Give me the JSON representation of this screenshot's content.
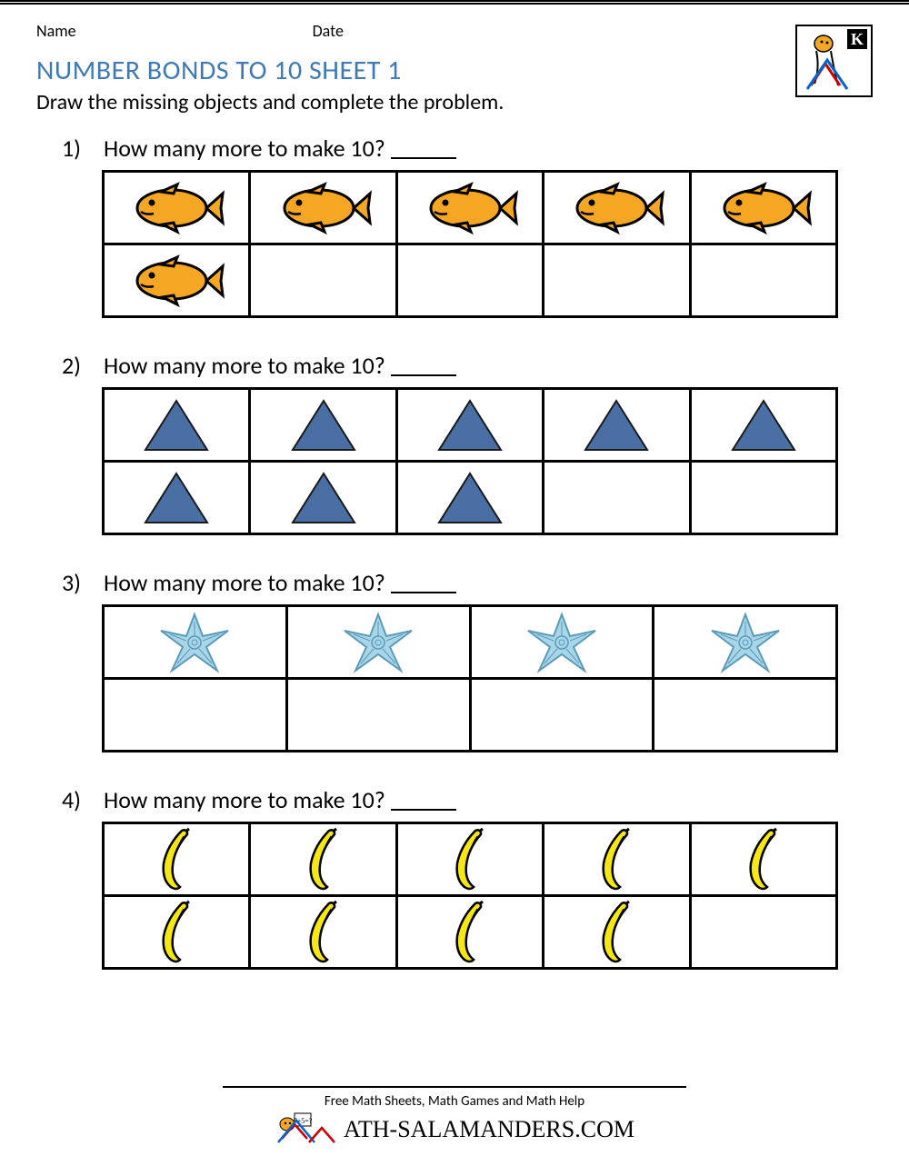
{
  "header": {
    "name_label": "Name",
    "date_label": "Date",
    "grade_badge": "K"
  },
  "title": "NUMBER BONDS TO 10 SHEET 1",
  "title_color": "#3f7ab5",
  "instructions": "Draw the missing objects and complete the problem.",
  "background_color": "#ffffff",
  "text_color": "#000000",
  "border_color": "#000000",
  "problems": [
    {
      "number": "1)",
      "question": "How many more to make 10?",
      "columns": 5,
      "rows": 2,
      "filled_count": 6,
      "icon": "fish",
      "icon_colors": {
        "body": "#f5a623",
        "outline": "#000000",
        "eye": "#000000"
      }
    },
    {
      "number": "2)",
      "question": "How many more to make 10?",
      "columns": 5,
      "rows": 2,
      "filled_count": 8,
      "icon": "triangle",
      "icon_colors": {
        "fill": "#4a6fa5",
        "outline": "#1a1a1a"
      }
    },
    {
      "number": "3)",
      "question": "How many more to make 10?",
      "columns": 4,
      "rows": 2,
      "filled_count": 4,
      "icon": "starfish",
      "icon_colors": {
        "fill": "#a8d5e8",
        "outline": "#5a9bb8"
      }
    },
    {
      "number": "4)",
      "question": "How many more to make 10?",
      "columns": 5,
      "rows": 2,
      "filled_count": 9,
      "icon": "banana",
      "icon_colors": {
        "fill": "#f5e614",
        "outline": "#000000"
      }
    }
  ],
  "footer": {
    "tagline": "Free Math Sheets, Math Games and Math Help",
    "site": "ATH-SALAMANDERS.COM"
  }
}
